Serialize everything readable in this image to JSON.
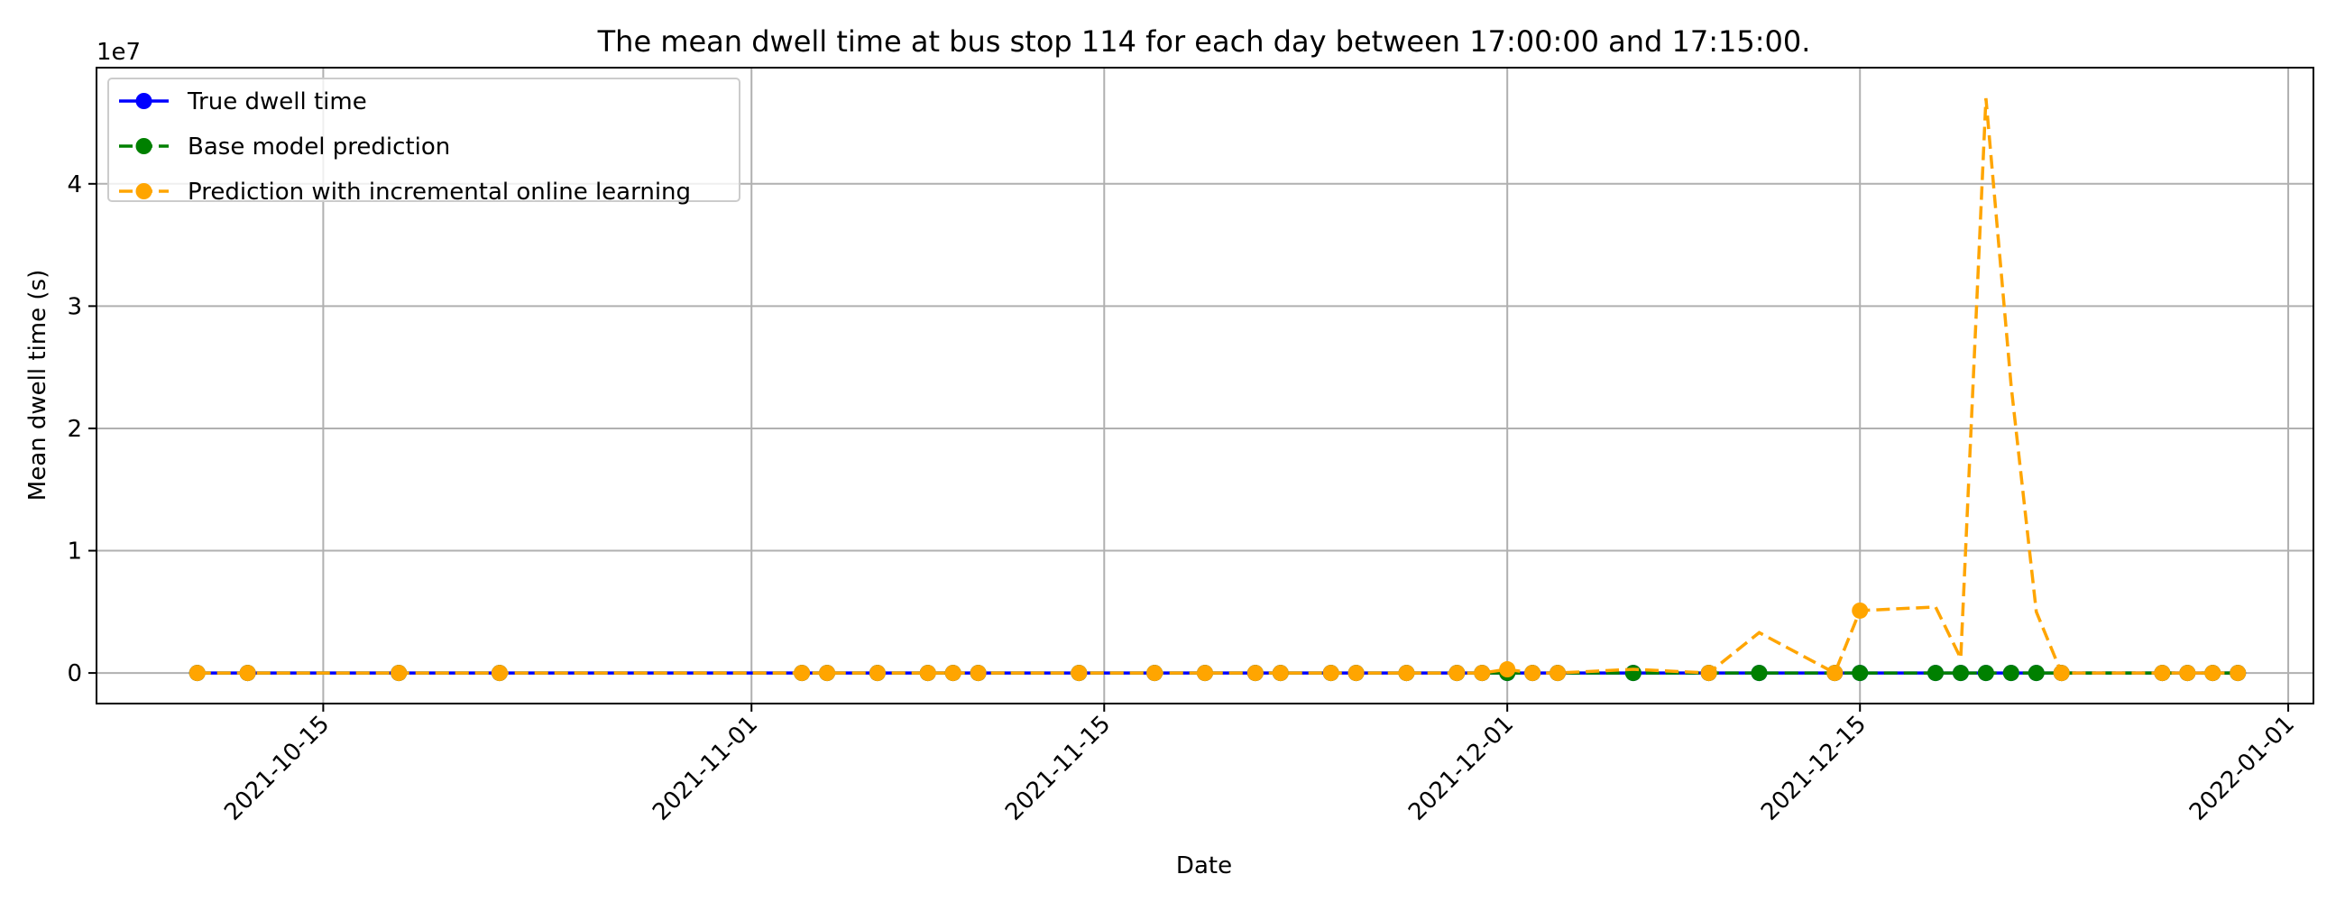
{
  "chart_data": {
    "type": "line",
    "title": "The mean dwell time at bus stop 114 for each day between 17:00:00 and 17:15:00.",
    "xlabel": "Date",
    "ylabel": "Mean dwell time (s)",
    "y_offset_label": "1e7",
    "x_ticks": [
      "2021-10-15",
      "2021-11-01",
      "2021-11-15",
      "2021-12-01",
      "2021-12-15",
      "2022-01-01"
    ],
    "y_ticks": [
      0,
      1,
      2,
      3,
      4
    ],
    "xlim": [
      "2021-10-06",
      "2022-01-02"
    ],
    "ylim": [
      -2500000,
      49500000
    ],
    "grid": true,
    "legend_position": "top-left",
    "series": [
      {
        "name": "True dwell time",
        "color": "#0000ff",
        "line_style": "solid",
        "x": [
          "2021-10-10",
          "2021-10-12",
          "2021-10-18",
          "2021-10-22",
          "2021-11-03",
          "2021-11-04",
          "2021-11-06",
          "2021-11-08",
          "2021-11-09",
          "2021-11-10",
          "2021-11-14",
          "2021-11-17",
          "2021-11-19",
          "2021-11-21",
          "2021-11-22",
          "2021-11-24",
          "2021-11-25",
          "2021-11-27",
          "2021-11-29",
          "2021-11-30",
          "2021-12-01",
          "2021-12-02",
          "2021-12-03",
          "2021-12-06",
          "2021-12-09",
          "2021-12-11",
          "2021-12-14",
          "2021-12-15",
          "2021-12-18",
          "2021-12-19",
          "2021-12-20",
          "2021-12-21",
          "2021-12-22",
          "2021-12-23",
          "2021-12-27",
          "2021-12-28",
          "2021-12-29",
          "2021-12-30"
        ],
        "values": [
          30,
          30,
          30,
          30,
          30,
          30,
          30,
          30,
          30,
          30,
          30,
          30,
          30,
          30,
          30,
          30,
          30,
          30,
          30,
          30,
          30,
          30,
          30,
          30,
          30,
          30,
          30,
          30,
          30,
          30,
          30,
          30,
          30,
          30,
          30,
          30,
          30,
          30
        ]
      },
      {
        "name": "Base model prediction",
        "color": "#008000",
        "line_style": "dashed",
        "x": [
          "2021-10-10",
          "2021-10-12",
          "2021-10-18",
          "2021-10-22",
          "2021-11-03",
          "2021-11-04",
          "2021-11-06",
          "2021-11-08",
          "2021-11-09",
          "2021-11-10",
          "2021-11-14",
          "2021-11-17",
          "2021-11-19",
          "2021-11-21",
          "2021-11-22",
          "2021-11-24",
          "2021-11-25",
          "2021-11-27",
          "2021-11-29",
          "2021-11-30",
          "2021-12-01",
          "2021-12-02",
          "2021-12-03",
          "2021-12-06",
          "2021-12-09",
          "2021-12-11",
          "2021-12-14",
          "2021-12-15",
          "2021-12-18",
          "2021-12-19",
          "2021-12-20",
          "2021-12-21",
          "2021-12-22",
          "2021-12-23",
          "2021-12-27",
          "2021-12-28",
          "2021-12-29",
          "2021-12-30"
        ],
        "values": [
          30,
          30,
          30,
          30,
          30,
          30,
          30,
          30,
          30,
          30,
          30,
          30,
          30,
          30,
          30,
          30,
          30,
          30,
          30,
          30,
          30,
          30,
          30,
          30,
          30,
          30,
          30,
          30,
          30,
          30,
          30,
          30,
          30,
          30,
          30,
          30,
          30,
          30
        ]
      },
      {
        "name": "Prediction with incremental online learning",
        "color": "#ffa500",
        "line_style": "dashed",
        "x": [
          "2021-10-10",
          "2021-10-12",
          "2021-10-18",
          "2021-10-22",
          "2021-11-03",
          "2021-11-04",
          "2021-11-06",
          "2021-11-08",
          "2021-11-09",
          "2021-11-10",
          "2021-11-14",
          "2021-11-17",
          "2021-11-19",
          "2021-11-21",
          "2021-11-22",
          "2021-11-24",
          "2021-11-25",
          "2021-11-27",
          "2021-11-29",
          "2021-11-30",
          "2021-12-01",
          "2021-12-02",
          "2021-12-03",
          "2021-12-06",
          "2021-12-09",
          "2021-12-11",
          "2021-12-14",
          "2021-12-15",
          "2021-12-18",
          "2021-12-19",
          "2021-12-20",
          "2021-12-21",
          "2021-12-22",
          "2021-12-23",
          "2021-12-27",
          "2021-12-28",
          "2021-12-29",
          "2021-12-30"
        ],
        "values": [
          0,
          0,
          0,
          0,
          0,
          0,
          0,
          0,
          0,
          0,
          0,
          0,
          0,
          0,
          0,
          0,
          0,
          0,
          0,
          0,
          300000,
          0,
          0,
          300000,
          0,
          3300000,
          0,
          5100000,
          5400000,
          1200000,
          47000000,
          23500000,
          5000000,
          0,
          0,
          0,
          0,
          0
        ],
        "hidden_points": [
          "2021-12-06",
          "2021-12-11",
          "2021-12-18",
          "2021-12-19",
          "2021-12-20",
          "2021-12-21",
          "2021-12-22"
        ]
      }
    ]
  }
}
